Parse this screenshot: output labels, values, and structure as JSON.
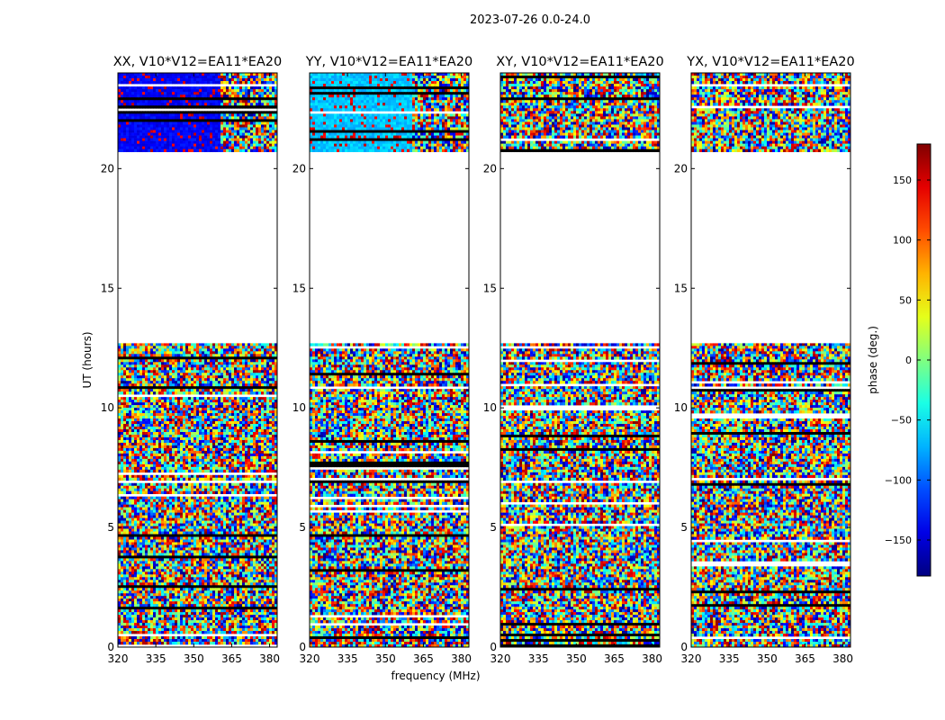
{
  "figure": {
    "suptitle": "2023-07-26 0.0-24.0",
    "xlabel": "frequency (MHz)",
    "ylabel": "UT (hours)"
  },
  "chart_data": {
    "type": "heatmap",
    "x_range": [
      320,
      383
    ],
    "y_range": [
      0,
      24
    ],
    "x_ticks": [
      320,
      335,
      350,
      365,
      380
    ],
    "y_ticks": [
      0,
      5,
      10,
      15,
      20
    ],
    "data_blocks_hours": [
      [
        0.0,
        12.7
      ],
      [
        20.7,
        24.0
      ]
    ],
    "panels": [
      {
        "title": "XX, V10*V12=EA11*EA20",
        "pol": "XX"
      },
      {
        "title": "YY, V10*V12=EA11*EA20",
        "pol": "YY"
      },
      {
        "title": "XY, V10*V12=EA11*EA20",
        "pol": "XY"
      },
      {
        "title": "YX, V10*V12=EA11*EA20",
        "pol": "YX"
      }
    ],
    "colorbar": {
      "label": "phase (deg.)",
      "range": [
        -180,
        180
      ],
      "ticks": [
        150,
        100,
        50,
        0,
        -50,
        -100,
        -150
      ],
      "cmap": "jet"
    }
  }
}
